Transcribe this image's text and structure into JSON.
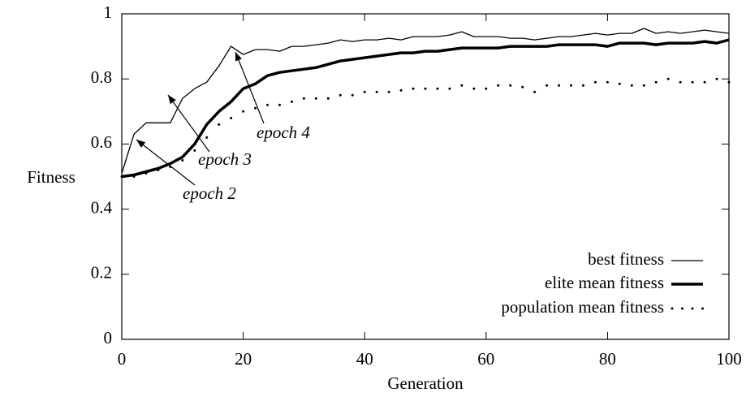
{
  "chart_data": {
    "type": "line",
    "x_label": "Generation",
    "y_label": "Fitness",
    "x": [
      0,
      2,
      4,
      6,
      8,
      10,
      12,
      14,
      16,
      18,
      20,
      22,
      24,
      26,
      28,
      30,
      32,
      34,
      36,
      38,
      40,
      42,
      44,
      46,
      48,
      50,
      52,
      54,
      56,
      58,
      60,
      62,
      64,
      66,
      68,
      70,
      72,
      74,
      76,
      78,
      80,
      82,
      84,
      86,
      88,
      90,
      92,
      94,
      96,
      98,
      100
    ],
    "series": [
      {
        "name": "best fitness",
        "color": "#000000",
        "style": "line",
        "line_width": 1.3,
        "values": [
          0.51,
          0.63,
          0.665,
          0.665,
          0.665,
          0.74,
          0.77,
          0.79,
          0.84,
          0.9,
          0.875,
          0.89,
          0.89,
          0.885,
          0.9,
          0.9,
          0.905,
          0.91,
          0.92,
          0.915,
          0.92,
          0.92,
          0.925,
          0.92,
          0.93,
          0.93,
          0.93,
          0.935,
          0.945,
          0.93,
          0.93,
          0.93,
          0.925,
          0.925,
          0.92,
          0.925,
          0.93,
          0.93,
          0.935,
          0.94,
          0.935,
          0.94,
          0.94,
          0.955,
          0.94,
          0.945,
          0.94,
          0.945,
          0.95,
          0.945,
          0.94
        ]
      },
      {
        "name": "elite mean fitness",
        "color": "#000000",
        "style": "line",
        "line_width": 3.5,
        "values": [
          0.5,
          0.505,
          0.515,
          0.525,
          0.54,
          0.56,
          0.6,
          0.66,
          0.7,
          0.73,
          0.77,
          0.785,
          0.81,
          0.82,
          0.825,
          0.83,
          0.835,
          0.845,
          0.855,
          0.86,
          0.865,
          0.87,
          0.875,
          0.88,
          0.88,
          0.885,
          0.885,
          0.89,
          0.895,
          0.895,
          0.895,
          0.895,
          0.9,
          0.9,
          0.9,
          0.9,
          0.905,
          0.905,
          0.905,
          0.905,
          0.9,
          0.91,
          0.91,
          0.91,
          0.905,
          0.91,
          0.91,
          0.91,
          0.915,
          0.91,
          0.92
        ]
      },
      {
        "name": "population mean fitness",
        "color": "#000000",
        "style": "dots",
        "line_width": 1.5,
        "values": [
          0.5,
          0.5,
          0.51,
          0.52,
          0.53,
          0.55,
          0.58,
          0.62,
          0.66,
          0.68,
          0.7,
          0.71,
          0.72,
          0.72,
          0.73,
          0.74,
          0.74,
          0.74,
          0.75,
          0.75,
          0.76,
          0.76,
          0.76,
          0.765,
          0.77,
          0.77,
          0.77,
          0.77,
          0.78,
          0.77,
          0.77,
          0.78,
          0.78,
          0.775,
          0.76,
          0.78,
          0.78,
          0.78,
          0.78,
          0.79,
          0.79,
          0.785,
          0.78,
          0.78,
          0.79,
          0.8,
          0.79,
          0.79,
          0.79,
          0.8,
          0.79
        ]
      }
    ],
    "annotations": [
      "epoch 2",
      "epoch 3",
      "epoch 4"
    ],
    "xlim": [
      0,
      100
    ],
    "xticks": [
      0,
      20,
      40,
      60,
      80,
      100
    ],
    "ylim": [
      0,
      1
    ],
    "yticks": [
      0,
      {
        "value": 0.2,
        "label": "0.2"
      },
      {
        "value": 0.4,
        "label": "0.4"
      },
      {
        "value": 0.6,
        "label": "0.6"
      },
      {
        "value": 0.8,
        "label": "0.8"
      },
      1
    ],
    "legend": "lower right"
  }
}
